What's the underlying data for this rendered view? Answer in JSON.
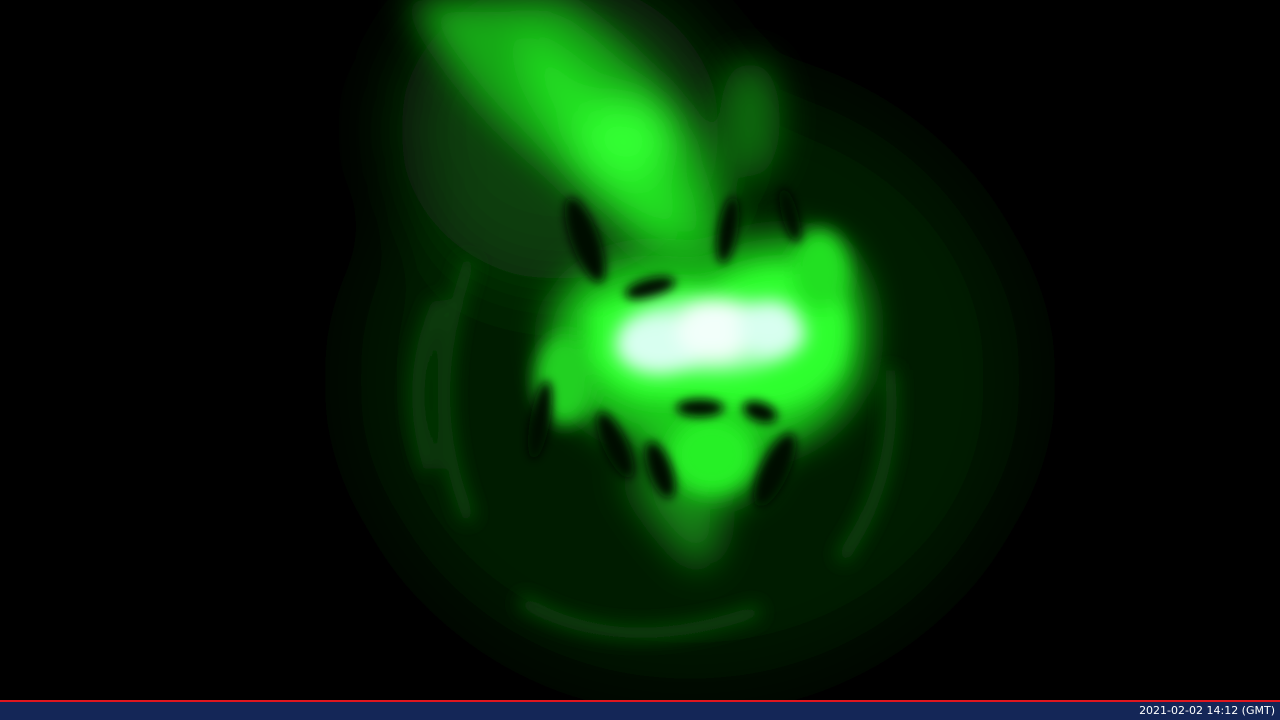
{
  "status_bar": {
    "timestamp": "2021-02-02 14:12 (GMT)"
  },
  "colors": {
    "background": "#000000",
    "beam": "#22ff22",
    "beam_core": "#e8fff8",
    "divider": "#e0161e",
    "status_bar": "#142657",
    "status_text": "#ffffff"
  }
}
